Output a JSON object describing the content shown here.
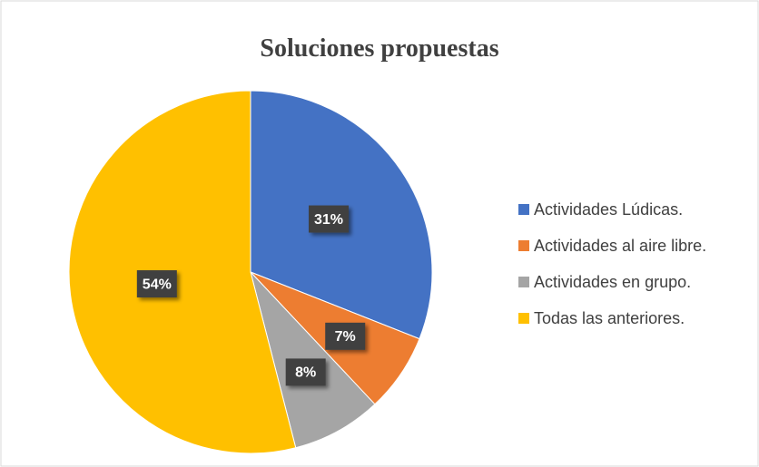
{
  "chart_data": {
    "type": "pie",
    "title": "Soluciones propuestas",
    "categories": [
      "Actividades Lúdicas.",
      "Actividades al aire libre.",
      "Actividades en grupo.",
      "Todas las anteriores."
    ],
    "values": [
      31,
      7,
      8,
      54
    ],
    "value_labels": [
      "31%",
      "7%",
      "8%",
      "54%"
    ],
    "colors": [
      "#4472c4",
      "#ed7d31",
      "#a5a5a5",
      "#ffc000"
    ],
    "legend": "right"
  }
}
